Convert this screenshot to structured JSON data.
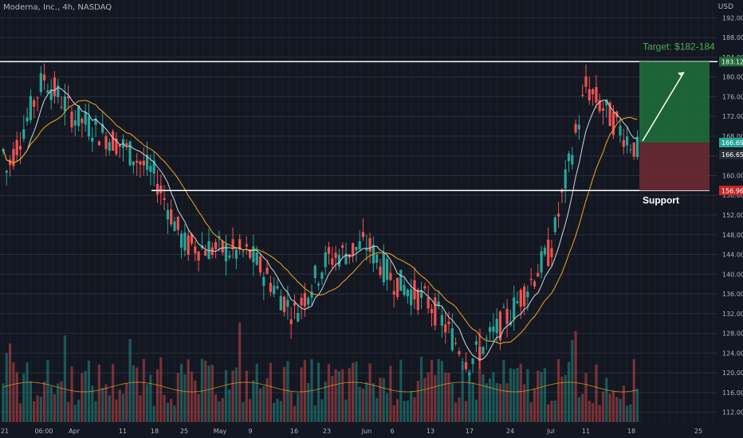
{
  "header": {
    "title": "Moderna, Inc., 4h, NASDAQ",
    "currency": "USD"
  },
  "annotations": {
    "target": "Target: $182-184",
    "support": "Support"
  },
  "price_tags": {
    "resistance": "183.12",
    "current": "166.69",
    "prev": "166.65",
    "support": "156.96"
  },
  "colors": {
    "background": "#131722",
    "up": "#26a69a",
    "down": "#ef5350",
    "ma_fast": "#cfd8dc",
    "ma_slow": "#f5a623",
    "target_zone": "#1e6b3a",
    "stop_zone": "#6a2a34",
    "label_bg": "#26a69a"
  },
  "chart_data": {
    "type": "candlestick",
    "title": "Moderna, Inc., 4h, NASDAQ",
    "ylim": [
      110,
      194
    ],
    "y_ticks": [
      "112.00",
      "116.00",
      "120.00",
      "124.00",
      "128.00",
      "132.00",
      "136.00",
      "140.00",
      "144.00",
      "148.00",
      "152.00",
      "156.00",
      "160.00",
      "164.00",
      "168.00",
      "172.00",
      "176.00",
      "180.00",
      "184.00",
      "188.00",
      "192.00"
    ],
    "x_ticks": [
      "21",
      "06:00",
      "Apr",
      "11",
      "18",
      "25",
      "May",
      "9",
      "16",
      "23",
      "Jun",
      "6",
      "13",
      "17",
      "24",
      "Jul",
      "11",
      "18",
      "25"
    ],
    "price_path": [
      [
        "21",
        160
      ],
      [
        "06:00",
        180
      ],
      [
        "Apr",
        172
      ],
      [
        "11",
        166
      ],
      [
        "18",
        160
      ],
      [
        "25",
        146
      ],
      [
        "May",
        145
      ],
      [
        "9",
        144
      ],
      [
        "16",
        132
      ],
      [
        "23",
        143
      ],
      [
        "Jun",
        146
      ],
      [
        "6",
        139
      ],
      [
        "13",
        134
      ],
      [
        "17",
        122
      ],
      [
        "24",
        132
      ],
      [
        "Jul",
        145
      ],
      [
        "11",
        178
      ],
      [
        "18",
        165
      ]
    ],
    "horizontal_lines": [
      183.12,
      156.96
    ],
    "target_zone": [
      166.69,
      183.12
    ],
    "stop_zone": [
      156.96,
      166.69
    ],
    "series": [
      {
        "name": "MA fast",
        "values": []
      },
      {
        "name": "MA slow",
        "values": []
      }
    ]
  }
}
